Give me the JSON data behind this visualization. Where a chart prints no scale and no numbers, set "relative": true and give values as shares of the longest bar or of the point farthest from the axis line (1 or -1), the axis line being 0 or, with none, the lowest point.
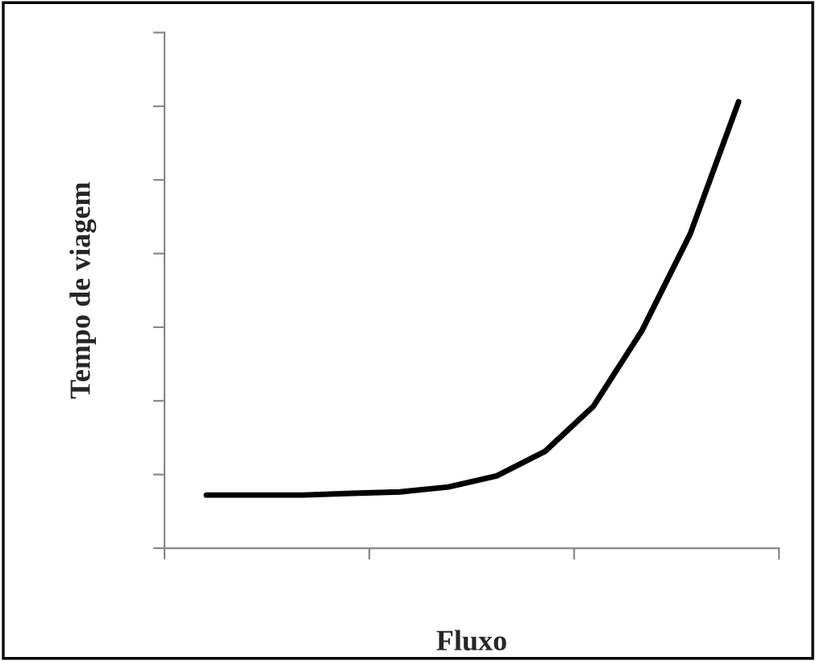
{
  "chart_data": {
    "type": "line",
    "xlabel": "Fluxo",
    "ylabel": "Tempo de viagem",
    "relative": true,
    "categories": [
      null,
      null,
      null,
      null,
      null,
      null,
      null,
      null,
      null,
      null,
      null,
      null
    ],
    "series": [
      {
        "color": "#000000",
        "values": [
          0.119,
          0.119,
          0.119,
          0.123,
          0.126,
          0.137,
          0.162,
          0.217,
          0.318,
          0.487,
          0.704,
          1.0
        ]
      }
    ],
    "grid": false,
    "legend": false,
    "marker": "none",
    "line_style": "solid"
  }
}
